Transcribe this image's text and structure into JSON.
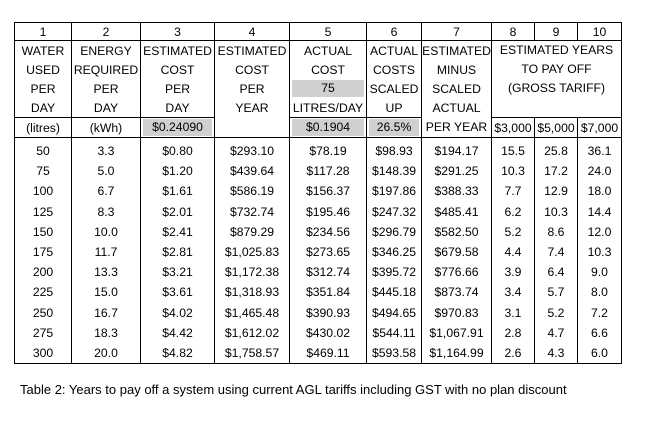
{
  "column_numbers": [
    "1",
    "2",
    "3",
    "4",
    "5",
    "6",
    "7",
    "8",
    "9",
    "10"
  ],
  "headers": {
    "c1": [
      "WATER",
      "USED",
      "PER",
      "DAY"
    ],
    "c2": [
      "ENERGY",
      "REQUIRED",
      "PER",
      "DAY"
    ],
    "c3": [
      "ESTIMATED",
      "COST",
      "PER",
      "DAY"
    ],
    "c4": [
      "ESTIMATED",
      "COST",
      "PER",
      "YEAR"
    ],
    "c5": [
      "ACTUAL",
      "COST",
      "75",
      "LITRES/DAY"
    ],
    "c6": [
      "ACTUAL",
      "COSTS",
      "SCALED",
      "UP"
    ],
    "c7": [
      "ESTIMATED",
      "MINUS",
      "SCALED",
      "ACTUAL"
    ],
    "c8to10": [
      "ESTIMATED YEARS",
      "TO PAY OFF",
      "(GROSS TARIFF)"
    ]
  },
  "units": {
    "c1": "(litres)",
    "c2": "(kWh)",
    "c3": "$0.24090",
    "c5": "$0.1904",
    "c6": "26.5%",
    "c7": "PER YEAR",
    "c8": "$3,000",
    "c9": "$5,000",
    "c10": "$7,000"
  },
  "rows": [
    [
      "50",
      "3.3",
      "$0.80",
      "$293.10",
      "$78.19",
      "$98.93",
      "$194.17",
      "15.5",
      "25.8",
      "36.1"
    ],
    [
      "75",
      "5.0",
      "$1.20",
      "$439.64",
      "$117.28",
      "$148.39",
      "$291.25",
      "10.3",
      "17.2",
      "24.0"
    ],
    [
      "100",
      "6.7",
      "$1.61",
      "$586.19",
      "$156.37",
      "$197.86",
      "$388.33",
      "7.7",
      "12.9",
      "18.0"
    ],
    [
      "125",
      "8.3",
      "$2.01",
      "$732.74",
      "$195.46",
      "$247.32",
      "$485.41",
      "6.2",
      "10.3",
      "14.4"
    ],
    [
      "150",
      "10.0",
      "$2.41",
      "$879.29",
      "$234.56",
      "$296.79",
      "$582.50",
      "5.2",
      "8.6",
      "12.0"
    ],
    [
      "175",
      "11.7",
      "$2.81",
      "$1,025.83",
      "$273.65",
      "$346.25",
      "$679.58",
      "4.4",
      "7.4",
      "10.3"
    ],
    [
      "200",
      "13.3",
      "$3.21",
      "$1,172.38",
      "$312.74",
      "$395.72",
      "$776.66",
      "3.9",
      "6.4",
      "9.0"
    ],
    [
      "225",
      "15.0",
      "$3.61",
      "$1,318.93",
      "$351.84",
      "$445.18",
      "$873.74",
      "3.4",
      "5.7",
      "8.0"
    ],
    [
      "250",
      "16.7",
      "$4.02",
      "$1,465.48",
      "$390.93",
      "$494.65",
      "$970.83",
      "3.1",
      "5.2",
      "7.2"
    ],
    [
      "275",
      "18.3",
      "$4.42",
      "$1,612.02",
      "$430.02",
      "$544.11",
      "$1,067.91",
      "2.8",
      "4.7",
      "6.6"
    ],
    [
      "300",
      "20.0",
      "$4.82",
      "$1,758.57",
      "$469.11",
      "$593.58",
      "$1,164.99",
      "2.6",
      "4.3",
      "6.0"
    ]
  ],
  "caption": "Table 2: Years to pay off a system using current AGL tariffs including GST with no plan discount"
}
